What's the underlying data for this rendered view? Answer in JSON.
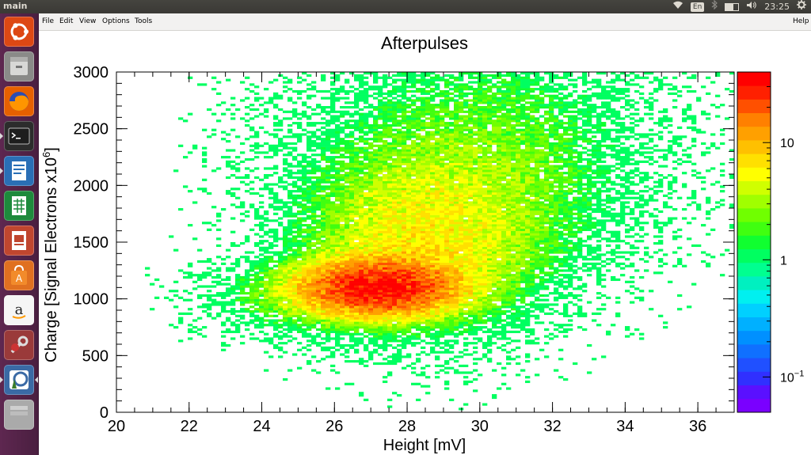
{
  "window": {
    "title": "main"
  },
  "top_panel": {
    "language": "En",
    "time": "23:25",
    "battery_fraction": 0.6
  },
  "launcher": {
    "items": [
      {
        "name": "ubuntu-dash-icon",
        "color": "#dd4814"
      },
      {
        "name": "files-icon",
        "color": "#8a8a88"
      },
      {
        "name": "firefox-icon",
        "color": "#e66000"
      },
      {
        "name": "terminal-icon",
        "color": "#2c2c2c"
      },
      {
        "name": "writer-icon",
        "color": "#2a6fb6"
      },
      {
        "name": "calc-icon",
        "color": "#1e8a3c"
      },
      {
        "name": "impress-icon",
        "color": "#c0462f"
      },
      {
        "name": "software-center-icon",
        "color": "#e07020"
      },
      {
        "name": "amazon-icon",
        "color": "#f5f5f5"
      },
      {
        "name": "settings-icon",
        "color": "#9a3a3a"
      },
      {
        "name": "root-app-icon",
        "color": "#3a6aa5"
      },
      {
        "name": "workspaces-icon",
        "color": "#aaaaaa"
      }
    ]
  },
  "menubar": {
    "file": "File",
    "edit": "Edit",
    "view": "View",
    "options": "Options",
    "tools": "Tools",
    "help": "Help"
  },
  "chart_data": {
    "type": "heatmap",
    "title": "Afterpulses",
    "xlabel": "Height [mV]",
    "ylabel": "Charge [Signal Electrons x10",
    "ylabel_exponent": "6",
    "ylabel_suffix": "]",
    "xlim": [
      20,
      37
    ],
    "ylim": [
      0,
      3000
    ],
    "x_ticks": [
      "20",
      "22",
      "24",
      "26",
      "28",
      "30",
      "32",
      "34",
      "36"
    ],
    "y_ticks": [
      "0",
      "500",
      "1000",
      "1500",
      "2000",
      "2500",
      "3000"
    ],
    "z_scale": "log",
    "z_ticks": [
      "10",
      "1",
      "10"
    ],
    "z_tick_exponents": [
      "",
      "",
      "−1"
    ],
    "z_range": [
      0.05,
      40
    ],
    "palette": [
      "#7a00ff",
      "#5a10ff",
      "#3030ff",
      "#2050ff",
      "#1070ff",
      "#0090ff",
      "#00b0ff",
      "#00d0ff",
      "#00f0f0",
      "#00f0c0",
      "#00ff90",
      "#00ff60",
      "#10ff30",
      "#40ff10",
      "#70ff00",
      "#a0ff00",
      "#d0ff00",
      "#ffff00",
      "#ffe000",
      "#ffc000",
      "#ffa000",
      "#ff8000",
      "#ff5000",
      "#ff2000",
      "#ff0000"
    ],
    "density_model": {
      "description": "Binned 2D histogram; main cluster near x≈27 mV, y≈1100, broad tail up-right.",
      "components": [
        {
          "x_center": 27.2,
          "y_center": 1100,
          "x_sigma": 1.2,
          "y_sigma": 140,
          "amplitude": 35
        },
        {
          "x_center": 28.5,
          "y_center": 1500,
          "x_sigma": 2.0,
          "y_sigma": 450,
          "amplitude": 6
        },
        {
          "x_center": 30.0,
          "y_center": 2300,
          "x_sigma": 2.8,
          "y_sigma": 600,
          "amplitude": 2.5
        },
        {
          "x_center": 25.0,
          "y_center": 1000,
          "x_sigma": 1.5,
          "y_sigma": 200,
          "amplitude": 2.0
        }
      ]
    }
  }
}
